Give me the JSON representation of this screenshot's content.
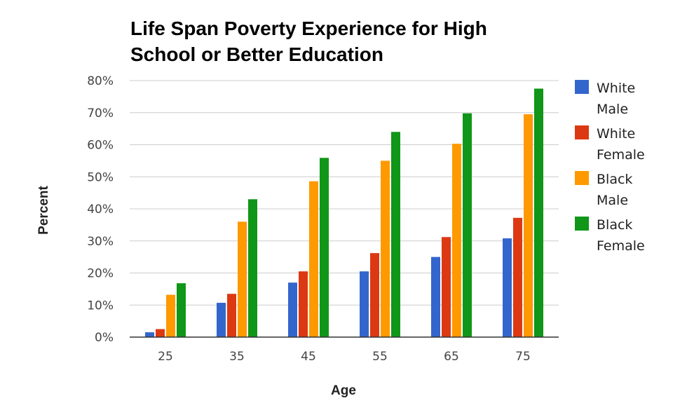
{
  "chart_data": {
    "type": "bar",
    "title_lines": [
      "Life Span Poverty Experience for High",
      "School or Better Education"
    ],
    "xlabel": "Age",
    "ylabel": "Percent",
    "categories": [
      "25",
      "35",
      "45",
      "55",
      "65",
      "75"
    ],
    "ylim": [
      0,
      80
    ],
    "yticks": [
      0,
      10,
      20,
      30,
      40,
      50,
      60,
      70,
      80
    ],
    "ytick_labels": [
      "0%",
      "10%",
      "20%",
      "30%",
      "40%",
      "50%",
      "60%",
      "70%",
      "80%"
    ],
    "grid": true,
    "legend_position": "right",
    "series": [
      {
        "name_lines": [
          "White",
          "Male"
        ],
        "color": "#3366cc",
        "values": [
          1.5,
          10.7,
          17,
          20.5,
          25,
          30.8
        ]
      },
      {
        "name_lines": [
          "White",
          "Female"
        ],
        "color": "#dc3912",
        "values": [
          2.5,
          13.5,
          20.5,
          26.2,
          31.2,
          37.2
        ]
      },
      {
        "name_lines": [
          "Black",
          "Male"
        ],
        "color": "#ff9900",
        "values": [
          13.2,
          36,
          48.6,
          55,
          60.3,
          69.5
        ]
      },
      {
        "name_lines": [
          "Black",
          "Female"
        ],
        "color": "#109618",
        "values": [
          16.8,
          43,
          55.9,
          64,
          69.8,
          77.5
        ]
      }
    ]
  }
}
